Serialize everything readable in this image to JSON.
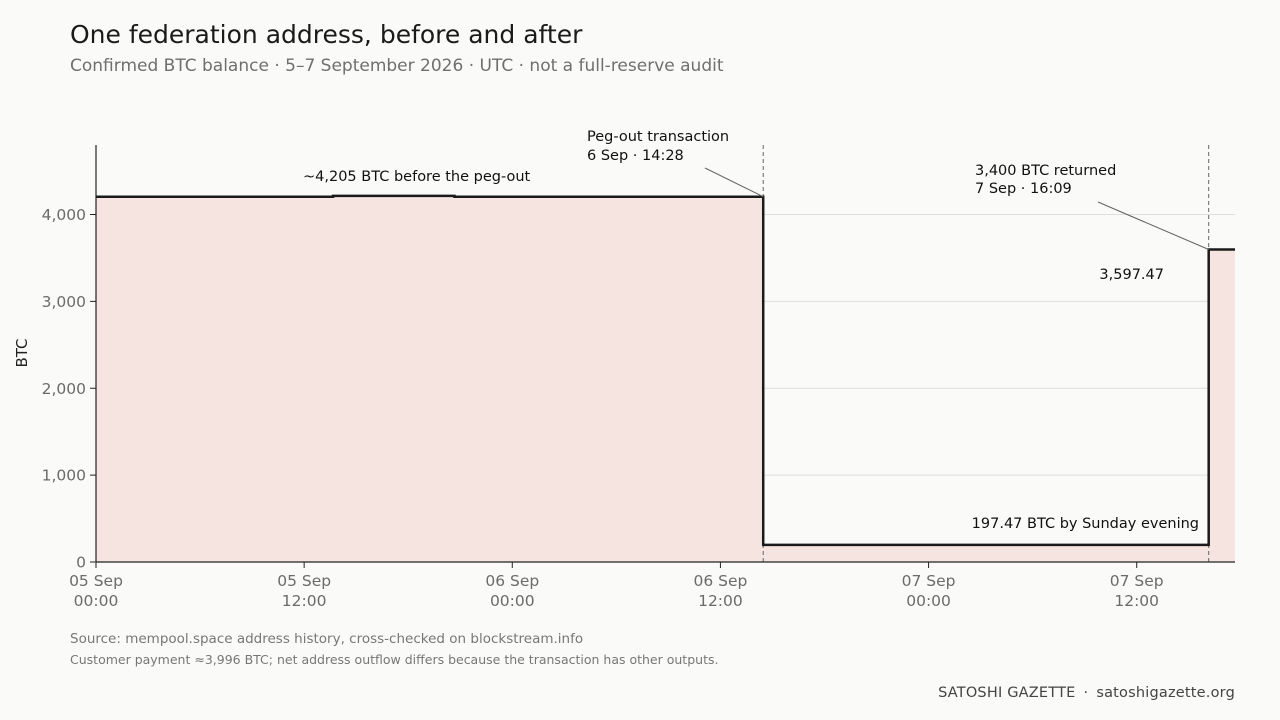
{
  "header": {
    "title": "One federation address, before and after",
    "subtitle": "Confirmed BTC balance · 5–7 September 2026 · UTC · not a full-reserve audit"
  },
  "chart_data": {
    "type": "area",
    "ylabel": "BTC",
    "ylim": [
      0,
      4800
    ],
    "xlim": [
      "2026-09-05T00:00",
      "2026-09-07T17:40"
    ],
    "y_ticks": [
      {
        "value": 0,
        "label": "0"
      },
      {
        "value": 1000,
        "label": "1,000"
      },
      {
        "value": 2000,
        "label": "2,000"
      },
      {
        "value": 3000,
        "label": "3,000"
      },
      {
        "value": 4000,
        "label": "4,000"
      }
    ],
    "x_ticks": [
      {
        "value": "2026-09-05T00:00",
        "line1": "05 Sep",
        "line2": "00:00"
      },
      {
        "value": "2026-09-05T12:00",
        "line1": "05 Sep",
        "line2": "12:00"
      },
      {
        "value": "2026-09-06T00:00",
        "line1": "06 Sep",
        "line2": "00:00"
      },
      {
        "value": "2026-09-06T12:00",
        "line1": "06 Sep",
        "line2": "12:00"
      },
      {
        "value": "2026-09-07T00:00",
        "line1": "07 Sep",
        "line2": "00:00"
      },
      {
        "value": "2026-09-07T12:00",
        "line1": "07 Sep",
        "line2": "12:00"
      }
    ],
    "series": [
      {
        "step": "post",
        "points": [
          {
            "x": "2026-09-05T00:00",
            "y": 4205
          },
          {
            "x": "2026-09-05T13:40",
            "y": 4215
          },
          {
            "x": "2026-09-05T20:40",
            "y": 4205
          },
          {
            "x": "2026-09-06T14:28",
            "y": 197.47
          },
          {
            "x": "2026-09-07T16:09",
            "y": 3597.47
          },
          {
            "x": "2026-09-07T17:40",
            "y": 3597.47
          }
        ]
      }
    ],
    "events": [
      {
        "x": "2026-09-06T14:28",
        "label_line1": "Peg-out transaction",
        "label_line2": "6 Sep · 14:28"
      },
      {
        "x": "2026-09-07T16:09",
        "label_line1": "3,400 BTC returned",
        "label_line2": "7 Sep · 16:09"
      }
    ],
    "annotations": [
      {
        "text": "~4,205 BTC before the peg-out"
      },
      {
        "text": "197.47 BTC by Sunday evening"
      },
      {
        "text": "3,597.47"
      }
    ],
    "grid": true,
    "colors": {
      "fill": "#f5e4e0",
      "line": "#1a1a1a",
      "grid": "#dedede"
    }
  },
  "footer": {
    "source": "Source: mempool.space address history, cross-checked on blockstream.info",
    "note": "Customer payment ≈3,996 BTC; net address outflow differs because the transaction has other outputs.",
    "brand": "SATOSHI GAZETTE",
    "separator": "·",
    "site": "satoshigazette.org"
  }
}
